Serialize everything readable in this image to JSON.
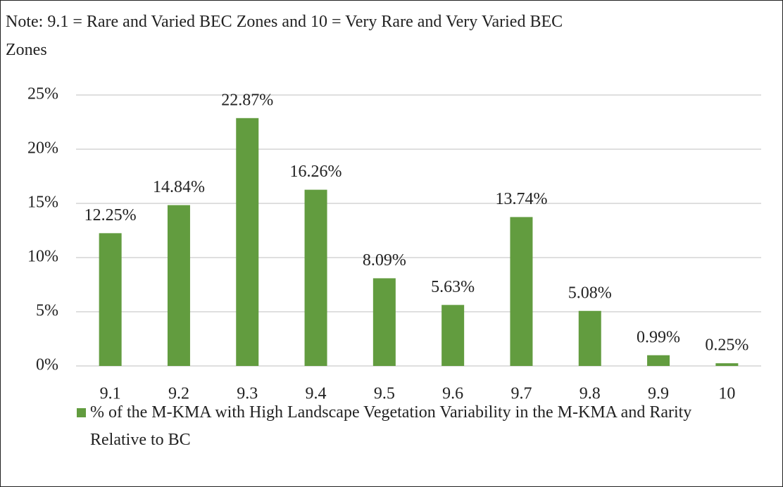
{
  "chart_data": {
    "type": "bar",
    "title": "Note: 9.1 = Rare and Varied BEC Zones and 10 = Very Rare and Very Varied BEC Zones",
    "categories": [
      "9.1",
      "9.2",
      "9.3",
      "9.4",
      "9.5",
      "9.6",
      "9.7",
      "9.8",
      "9.9",
      "10"
    ],
    "series": [
      {
        "name": "% of the M-KMA with High Landscape Vegetation Variability in the M-KMA and Rarity Relative to BC",
        "color": "#629c3f",
        "values": [
          12.25,
          14.84,
          22.87,
          16.26,
          8.09,
          5.63,
          13.74,
          5.08,
          0.99,
          0.25
        ],
        "value_labels": [
          "12.25%",
          "14.84%",
          "22.87%",
          "16.26%",
          "8.09%",
          "5.63%",
          "13.74%",
          "5.08%",
          "0.99%",
          "0.25%"
        ]
      }
    ],
    "ylim": [
      0,
      25
    ],
    "yticks": [
      {
        "value": 0,
        "label": "0%"
      },
      {
        "value": 5,
        "label": "5%"
      },
      {
        "value": 10,
        "label": "10%"
      },
      {
        "value": 15,
        "label": "15%"
      },
      {
        "value": 20,
        "label": "20%"
      },
      {
        "value": 25,
        "label": "25%"
      }
    ],
    "grid": true,
    "legend": "bottom"
  }
}
